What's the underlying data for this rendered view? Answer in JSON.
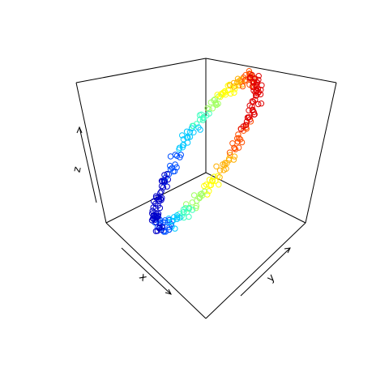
{
  "chart_data": {
    "type": "scatter",
    "projection": "3d-box",
    "title": "",
    "xlabel": "x",
    "ylabel": "y",
    "zlabel": "z",
    "grid": false,
    "color_by": "z",
    "palette": [
      "#0000c8",
      "#0050ff",
      "#00c8ff",
      "#40ffc0",
      "#a0ff60",
      "#ffff00",
      "#ffb000",
      "#ff5000",
      "#e00000"
    ],
    "marker": "open-circle",
    "xlim": [
      0,
      1
    ],
    "ylim": [
      0,
      1
    ],
    "zlim": [
      0,
      1
    ],
    "n_points": 300
  }
}
